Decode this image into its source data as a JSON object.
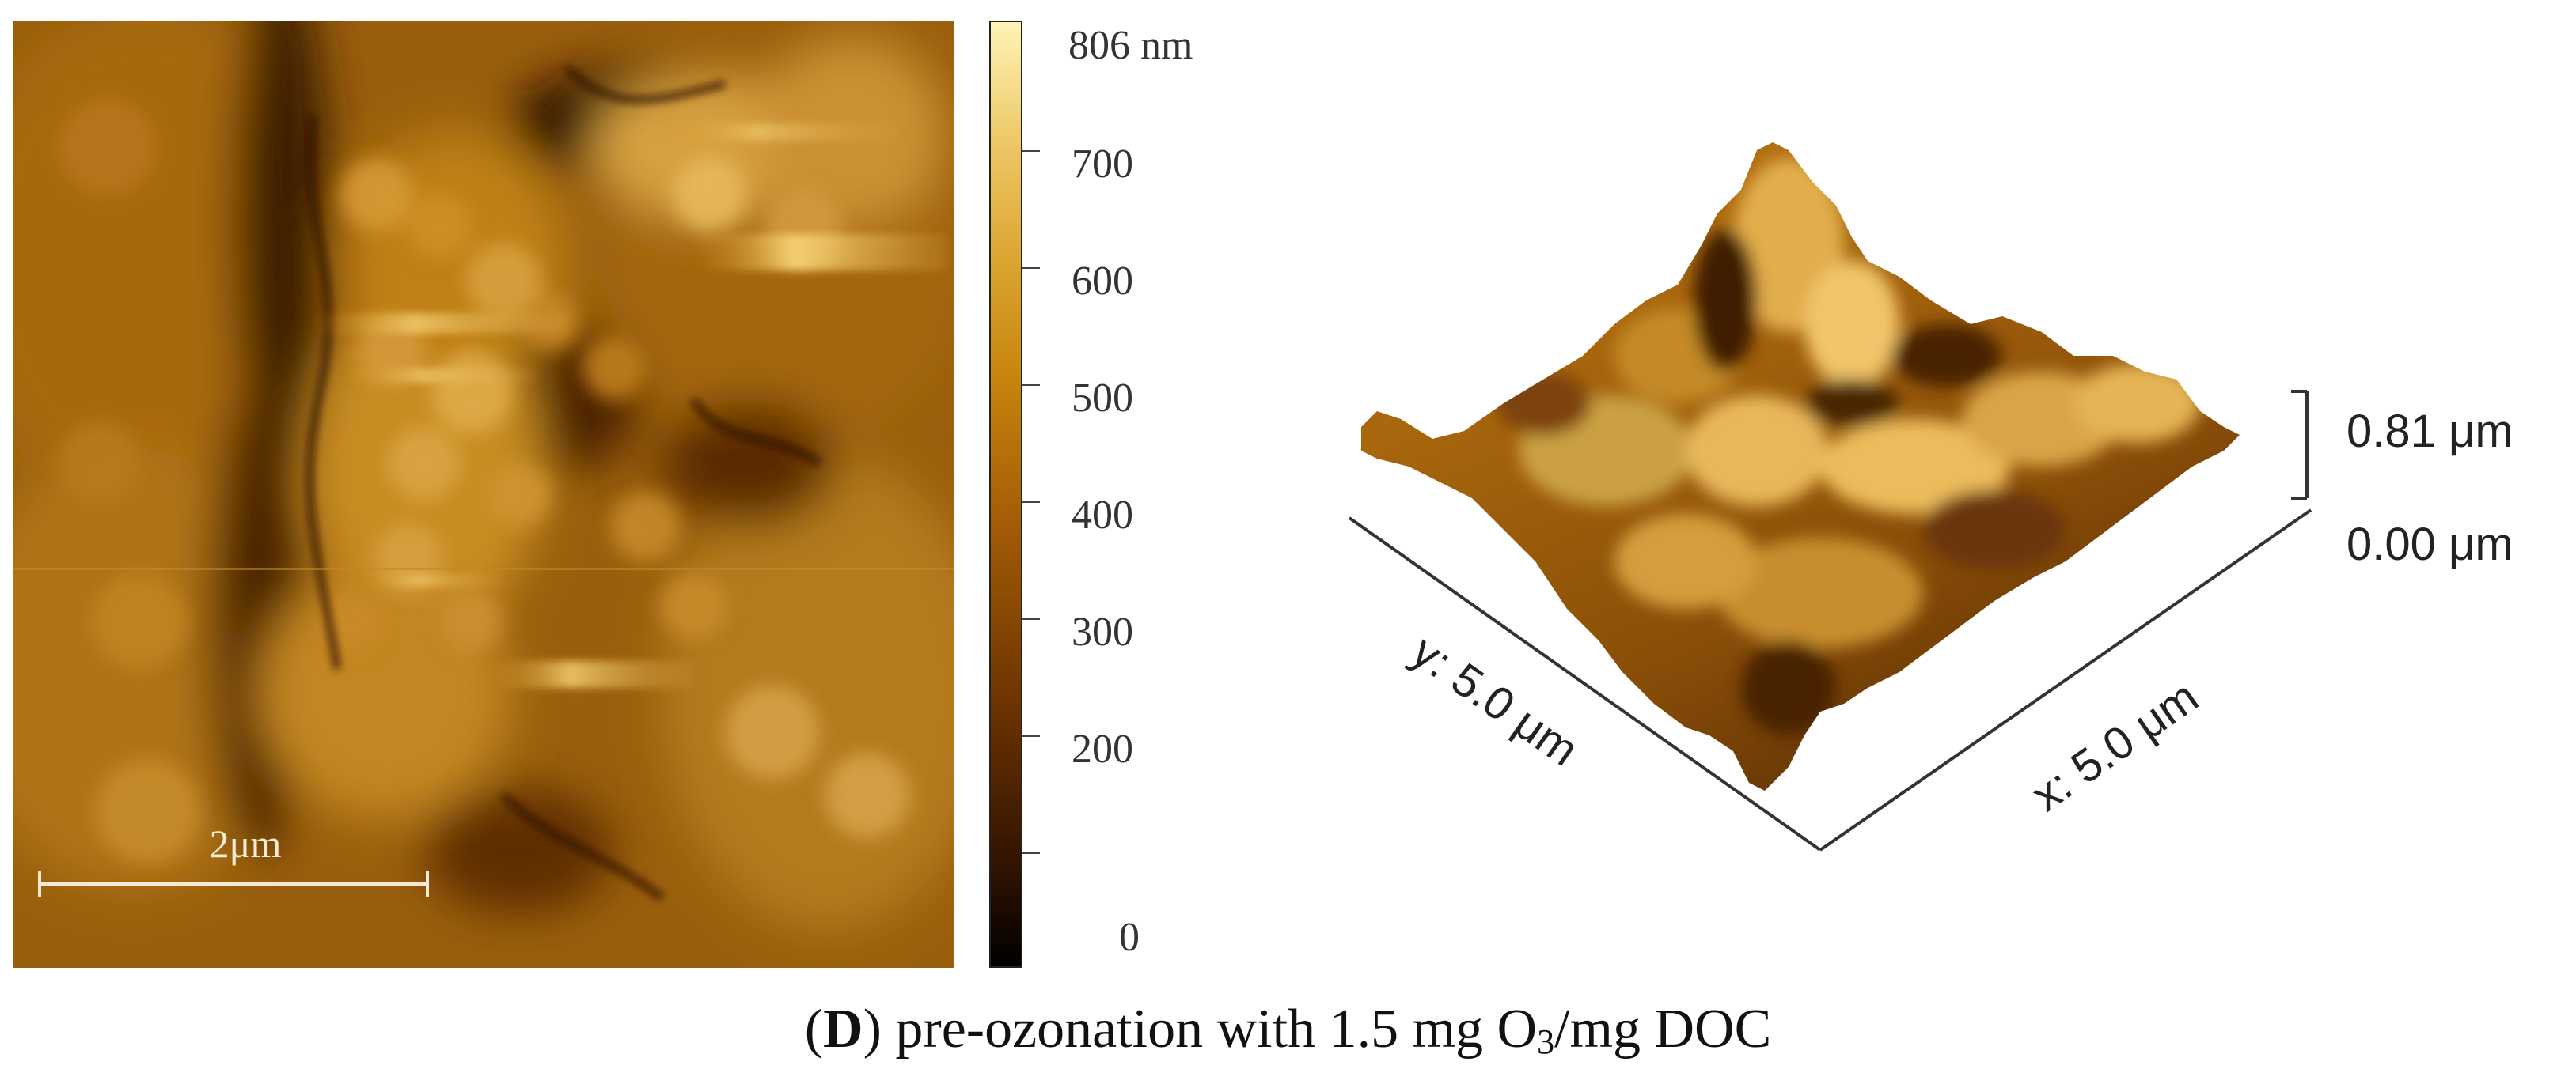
{
  "afm_2d": {
    "scale_bar_label": "2μm"
  },
  "colorbar": {
    "max_label": "806 nm",
    "ticks": [
      "700",
      "600",
      "500",
      "400",
      "300",
      "200",
      "0"
    ],
    "colors": [
      "#000000",
      "#6b3200",
      "#c6840e",
      "#fff3b8"
    ]
  },
  "afm_3d": {
    "z_top": "0.81 μm",
    "z_bottom": "0.00 μm",
    "y_axis": "y: 5.0 μm",
    "x_axis": "x: 5.0 μm"
  },
  "caption": {
    "panel": "D",
    "text_before": ") pre-ozonation with 1.5 mg O",
    "subscript": "3",
    "text_after": "/mg DOC"
  }
}
